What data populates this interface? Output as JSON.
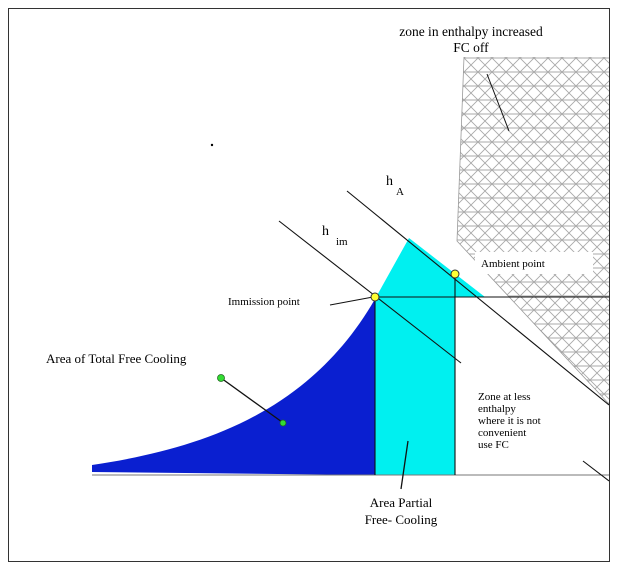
{
  "labels": {
    "top_zone_line1": "zone in enthalpy increased",
    "top_zone_line2": "FC off",
    "h_a_main": "h",
    "h_a_sub": "A",
    "h_im_main": "h",
    "h_im_sub": "im",
    "ambient_point": "Ambient point",
    "immission_point": "Immission point",
    "total_fc": "Area of Total Free Cooling",
    "zone_less_line1": "Zone at less",
    "zone_less_line2": "enthalpy",
    "zone_less_line3": "where it is not",
    "zone_less_line4": "convenient",
    "zone_less_line5": "use  FC",
    "partial_fc_line1": "Area Partial",
    "partial_fc_line2": "Free- Cooling"
  },
  "colors": {
    "total_fc_area": "#0a1fd0",
    "partial_fc_area": "#00f0f0",
    "hatch": "#a8a8a8",
    "point_fill": "#ffff33",
    "green_marker": "#33dd33"
  }
}
